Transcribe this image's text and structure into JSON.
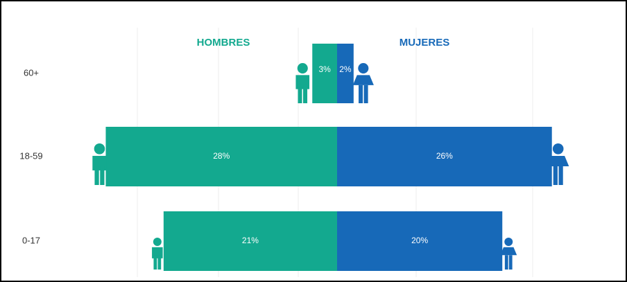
{
  "chart_data": {
    "type": "bar",
    "categories": [
      "60+",
      "18-59",
      "0-17"
    ],
    "series": [
      {
        "name": "HOMBRES",
        "color": "#13a98f",
        "values": [
          3,
          28,
          21
        ],
        "value_labels": [
          "3%",
          "28%",
          "21%"
        ]
      },
      {
        "name": "MUJERES",
        "color": "#1769b8",
        "values": [
          2,
          26,
          20
        ],
        "value_labels": [
          "2%",
          "26%",
          "20%"
        ]
      }
    ],
    "xlim": [
      -34,
      34
    ]
  }
}
